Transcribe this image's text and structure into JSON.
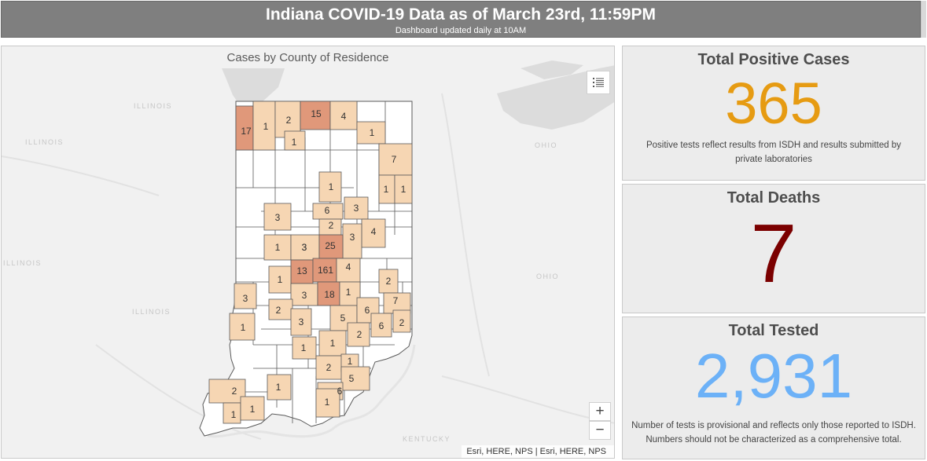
{
  "header": {
    "title": "Indiana COVID-19 Data as of March 23rd, 11:59PM",
    "subtitle": "Dashboard updated daily at 10AM"
  },
  "map": {
    "title": "Cases by County of Residence",
    "attribution": "Esri, HERE, NPS | Esri, HERE, NPS",
    "zoom_in": "+",
    "zoom_out": "−",
    "legend_icon": "list-icon",
    "basemap_labels": [
      "ILLINOIS",
      "ILLINOIS",
      "ILLINOIS",
      "ILLINOIS",
      "OHIO",
      "OHIO",
      "KENTUCKY"
    ],
    "county_case_counts": [
      17,
      1,
      2,
      15,
      4,
      1,
      1,
      7,
      1,
      1,
      1,
      3,
      6,
      3,
      2,
      3,
      4,
      3,
      1,
      3,
      25,
      13,
      161,
      4,
      1,
      3,
      18,
      1,
      2,
      7,
      3,
      2,
      3,
      5,
      6,
      6,
      2,
      1,
      2,
      1,
      1,
      2,
      1,
      5,
      2,
      1,
      6,
      1,
      1,
      1
    ],
    "colors": {
      "low": "#f6d6b3",
      "medium": "#eab08d",
      "high": "#e0987a",
      "none": "#ffffff",
      "border": "#5a5a5a",
      "water": "#dcdcdc",
      "land": "#f1f1f1"
    }
  },
  "stats": {
    "positive": {
      "title": "Total Positive Cases",
      "value": "365",
      "color": "#e69b12",
      "note": "Positive tests reflect results from ISDH and results submitted by private laboratories"
    },
    "deaths": {
      "title": "Total Deaths",
      "value": "7",
      "color": "#7b0000"
    },
    "tested": {
      "title": "Total Tested",
      "value": "2,931",
      "color": "#6cb1f7",
      "note": "Number of tests is provisional and reflects only those reported to ISDH. Numbers should not be characterized as a comprehensive total."
    }
  }
}
